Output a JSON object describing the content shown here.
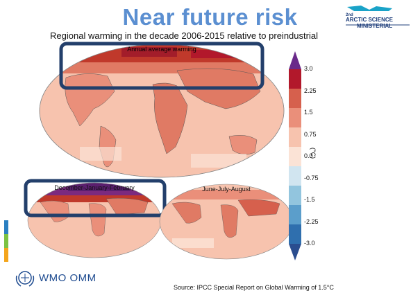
{
  "title": "Near future risk",
  "subtitle": "Regional warming in the decade 2006-2015 relative to preindustrial",
  "logo": {
    "superscript": "2nd",
    "line1": "ARCTIC SCIENCE",
    "line2": "MINISTERIAL",
    "icon": "iceberg-icon"
  },
  "maps": {
    "annual": {
      "label": "Annual average warming"
    },
    "djf": {
      "label": "December-January-February"
    },
    "jja": {
      "label": "June-July-August"
    }
  },
  "colorbar": {
    "unit": "(°C)",
    "ticks": [
      "3.0",
      "2.25",
      "1.5",
      "0.75",
      "0.0",
      "-0.75",
      "-1.5",
      "-2.25",
      "-3.0"
    ],
    "colors": [
      "#b2182b",
      "#d6604d",
      "#ea8f7a",
      "#f7c3ae",
      "#fbe3d6",
      "#d1e5f0",
      "#92c5de",
      "#5b9ecb",
      "#2f6fae"
    ],
    "top_arrow_color": "#6a2a8a",
    "bottom_arrow_color": "#2a4d8f"
  },
  "highlight_color": "#233f6b",
  "footer": {
    "org": "WMO OMM",
    "org_icon": "wmo-emblem-icon",
    "source": "Source: IPCC Special Report on Global Warming of 1.5°C"
  }
}
